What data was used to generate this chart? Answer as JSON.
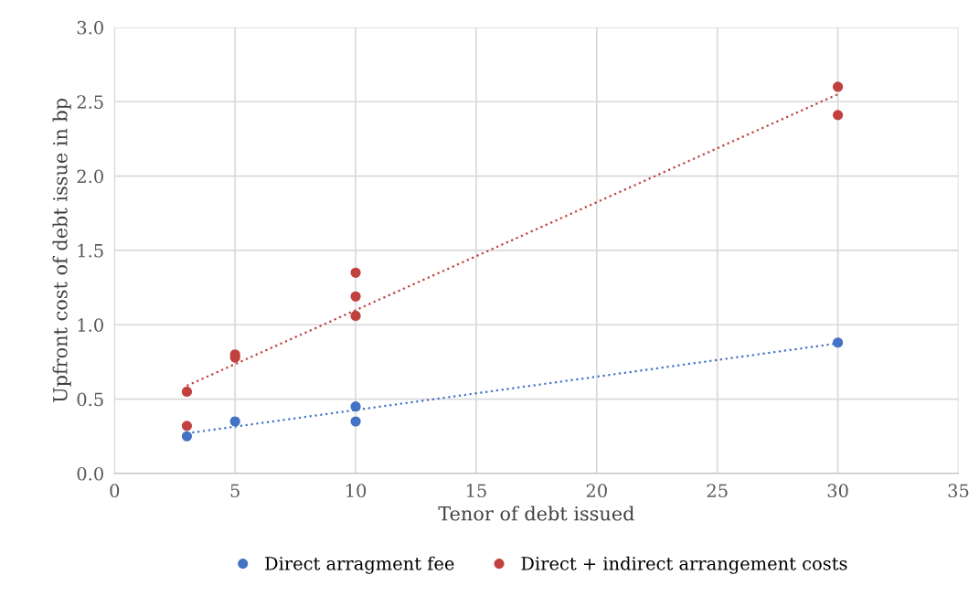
{
  "chart_data": {
    "type": "scatter",
    "xlabel": "Tenor of debt issued",
    "ylabel": "Upfront cost of debt issue in bp",
    "xlim": [
      0,
      35
    ],
    "xticks": [
      0,
      5,
      10,
      15,
      20,
      25,
      30,
      35
    ],
    "ylim": [
      0,
      3.0
    ],
    "yticks": [
      {
        "value": 0,
        "label": "0.0"
      },
      {
        "value": 0.5,
        "label": "0.5"
      },
      {
        "value": 1.0,
        "label": "1.0"
      },
      {
        "value": 1.5,
        "label": "1.5"
      },
      {
        "value": 2.0,
        "label": "2.0"
      },
      {
        "value": 2.5,
        "label": "2.5"
      },
      {
        "value": 3.0,
        "label": "3.0"
      }
    ],
    "grid": true,
    "legend": "bottom",
    "marker": "circle",
    "series": [
      {
        "name": "Direct arragment fee",
        "color": "#4472c4",
        "x": [
          3,
          5,
          10,
          10,
          30
        ],
        "values": [
          0.25,
          0.35,
          0.45,
          0.35,
          0.88
        ]
      },
      {
        "name": "Direct + indirect arrangement costs",
        "color": "#c0413e",
        "x": [
          3,
          3,
          5,
          5,
          10,
          10,
          10,
          30,
          30
        ],
        "values": [
          0.55,
          0.32,
          0.8,
          0.78,
          1.35,
          1.19,
          1.06,
          2.6,
          2.41
        ]
      },
      {
        "type": "line",
        "line_style": "dotted",
        "marker": "none",
        "color": "#4472c4",
        "x": [
          3,
          30
        ],
        "values": [
          0.27,
          0.875
        ]
      },
      {
        "type": "line",
        "line_style": "dotted",
        "marker": "none",
        "color": "#c0413e",
        "x": [
          3,
          30
        ],
        "values": [
          0.59,
          2.55
        ]
      }
    ]
  }
}
